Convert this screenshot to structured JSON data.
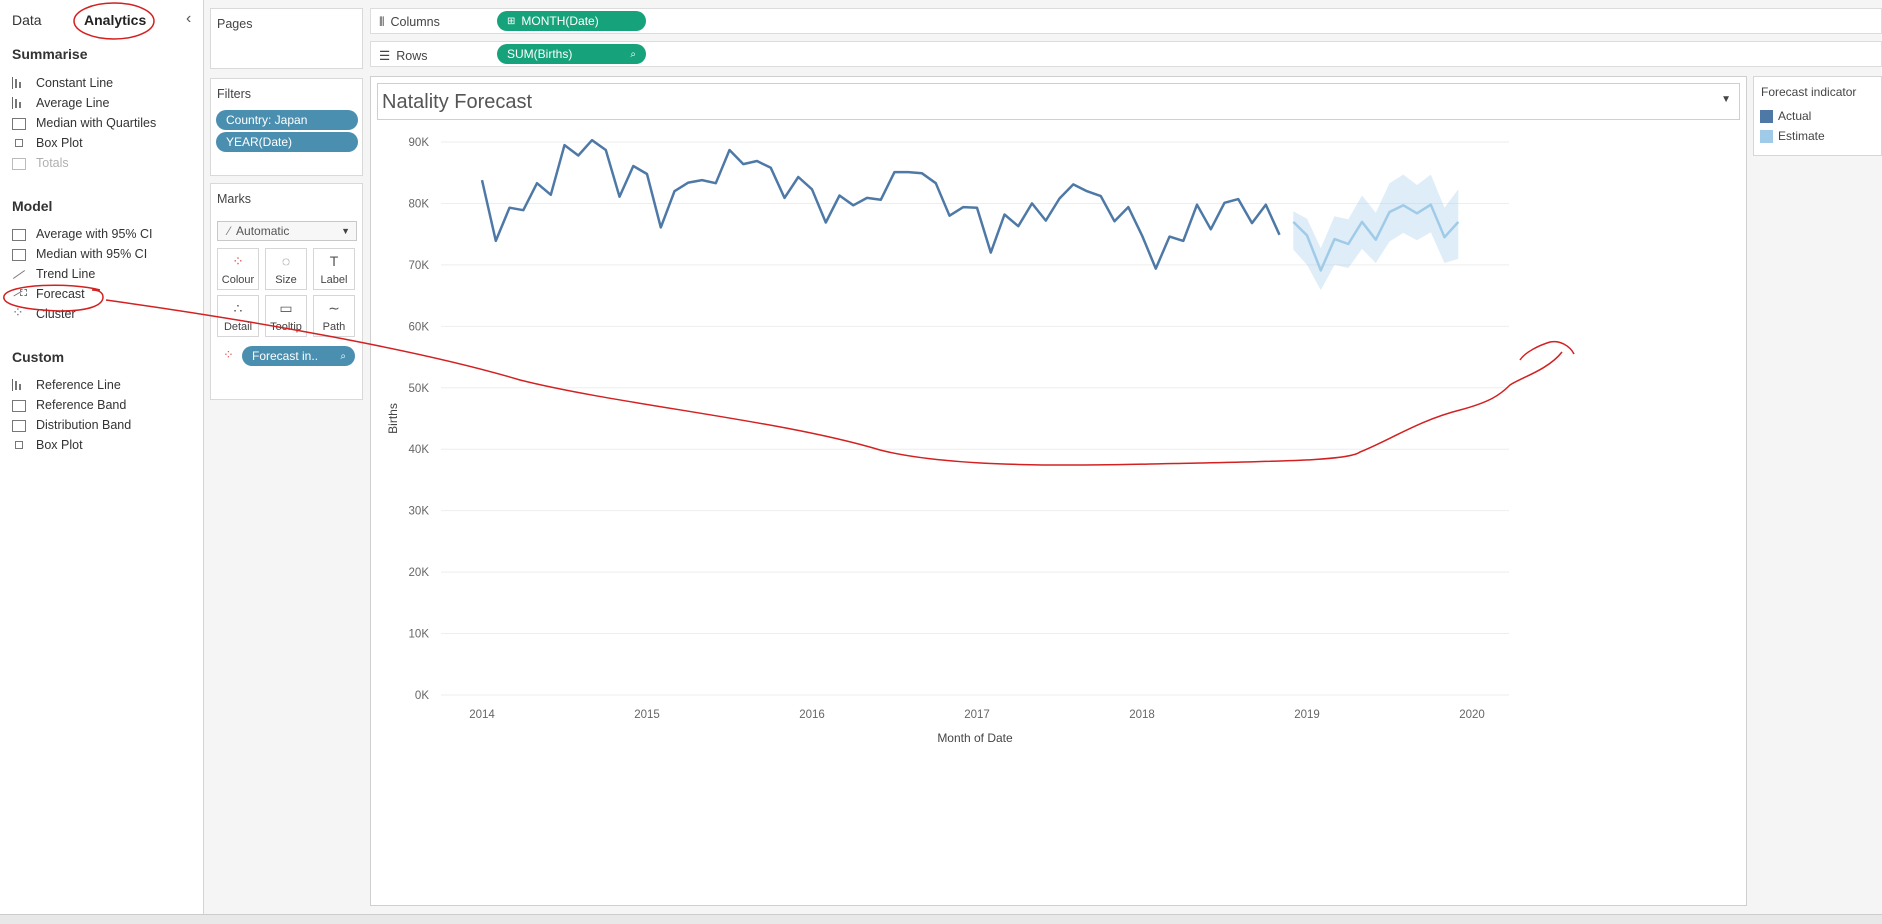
{
  "left_pane": {
    "tabs": [
      "Data",
      "Analytics"
    ],
    "summarise": {
      "heading": "Summarise",
      "items": [
        "Constant Line",
        "Average Line",
        "Median with Quartiles",
        "Box Plot",
        "Totals"
      ]
    },
    "model": {
      "heading": "Model",
      "items": [
        "Average with 95% CI",
        "Median with 95% CI",
        "Trend Line",
        "Forecast",
        "Cluster"
      ]
    },
    "custom": {
      "heading": "Custom",
      "items": [
        "Reference Line",
        "Reference Band",
        "Distribution Band",
        "Box Plot"
      ]
    }
  },
  "cards": {
    "pages_title": "Pages",
    "filters_title": "Filters",
    "filters": [
      "Country: Japan",
      "YEAR(Date)"
    ],
    "marks_title": "Marks",
    "mark_type": "Automatic",
    "mark_buttons": [
      "Colour",
      "Size",
      "Label",
      "Detail",
      "Tooltip",
      "Path"
    ],
    "marks_pill": "Forecast in.."
  },
  "shelves": {
    "columns_label": "Columns",
    "columns_pill": "MONTH(Date)",
    "rows_label": "Rows",
    "rows_pill": "SUM(Births)"
  },
  "viz": {
    "title": "Natality Forecast"
  },
  "legend": {
    "title": "Forecast indicator",
    "items": [
      {
        "label": "Actual",
        "color": "#4e79a7"
      },
      {
        "label": "Estimate",
        "color": "#a0cbe8"
      }
    ]
  },
  "chart_data": {
    "type": "line",
    "xlabel": "Month of Date",
    "ylabel": "Births",
    "x_ticks": [
      "2014",
      "2015",
      "2016",
      "2017",
      "2018",
      "2019",
      "2020"
    ],
    "y_ticks": [
      "0K",
      "10K",
      "20K",
      "30K",
      "40K",
      "50K",
      "60K",
      "70K",
      "80K",
      "90K"
    ],
    "ylim": [
      0,
      90000
    ],
    "x_range": [
      "2014-01",
      "2020-01"
    ],
    "grid": true,
    "series": [
      {
        "name": "Actual",
        "color": "#4e79a7",
        "start": "2014-01",
        "values": [
          83800,
          73900,
          79300,
          78900,
          83300,
          81400,
          89500,
          87800,
          90300,
          88700,
          81100,
          86100,
          84800,
          76100,
          82000,
          83400,
          83800,
          83300,
          88700,
          86400,
          86900,
          85800,
          80900,
          84300,
          82300,
          76900,
          81300,
          79700,
          80900,
          80600,
          85100,
          85100,
          84900,
          83300,
          78000,
          79400,
          79300,
          72000,
          78200,
          76300,
          80000,
          77200,
          80800,
          83100,
          82000,
          81200,
          77100,
          79400,
          74800,
          69400,
          74600,
          73900,
          79800,
          75800,
          80100,
          80700,
          76800,
          79800,
          74900
        ]
      },
      {
        "name": "Estimate",
        "color": "#a0cbe8",
        "start": "2018-12",
        "values": [
          77000,
          74800,
          69100,
          74200,
          73400,
          77000,
          74100,
          78600,
          79700,
          78400,
          79800,
          74500,
          77000
        ],
        "lower": [
          72500,
          70000,
          65900,
          70000,
          69500,
          72600,
          70300,
          73800,
          75200,
          74000,
          75300,
          70300,
          71000
        ],
        "upper": [
          78700,
          77500,
          72700,
          77900,
          77400,
          81300,
          78500,
          83300,
          84700,
          83000,
          84700,
          79300,
          82300
        ]
      }
    ]
  }
}
